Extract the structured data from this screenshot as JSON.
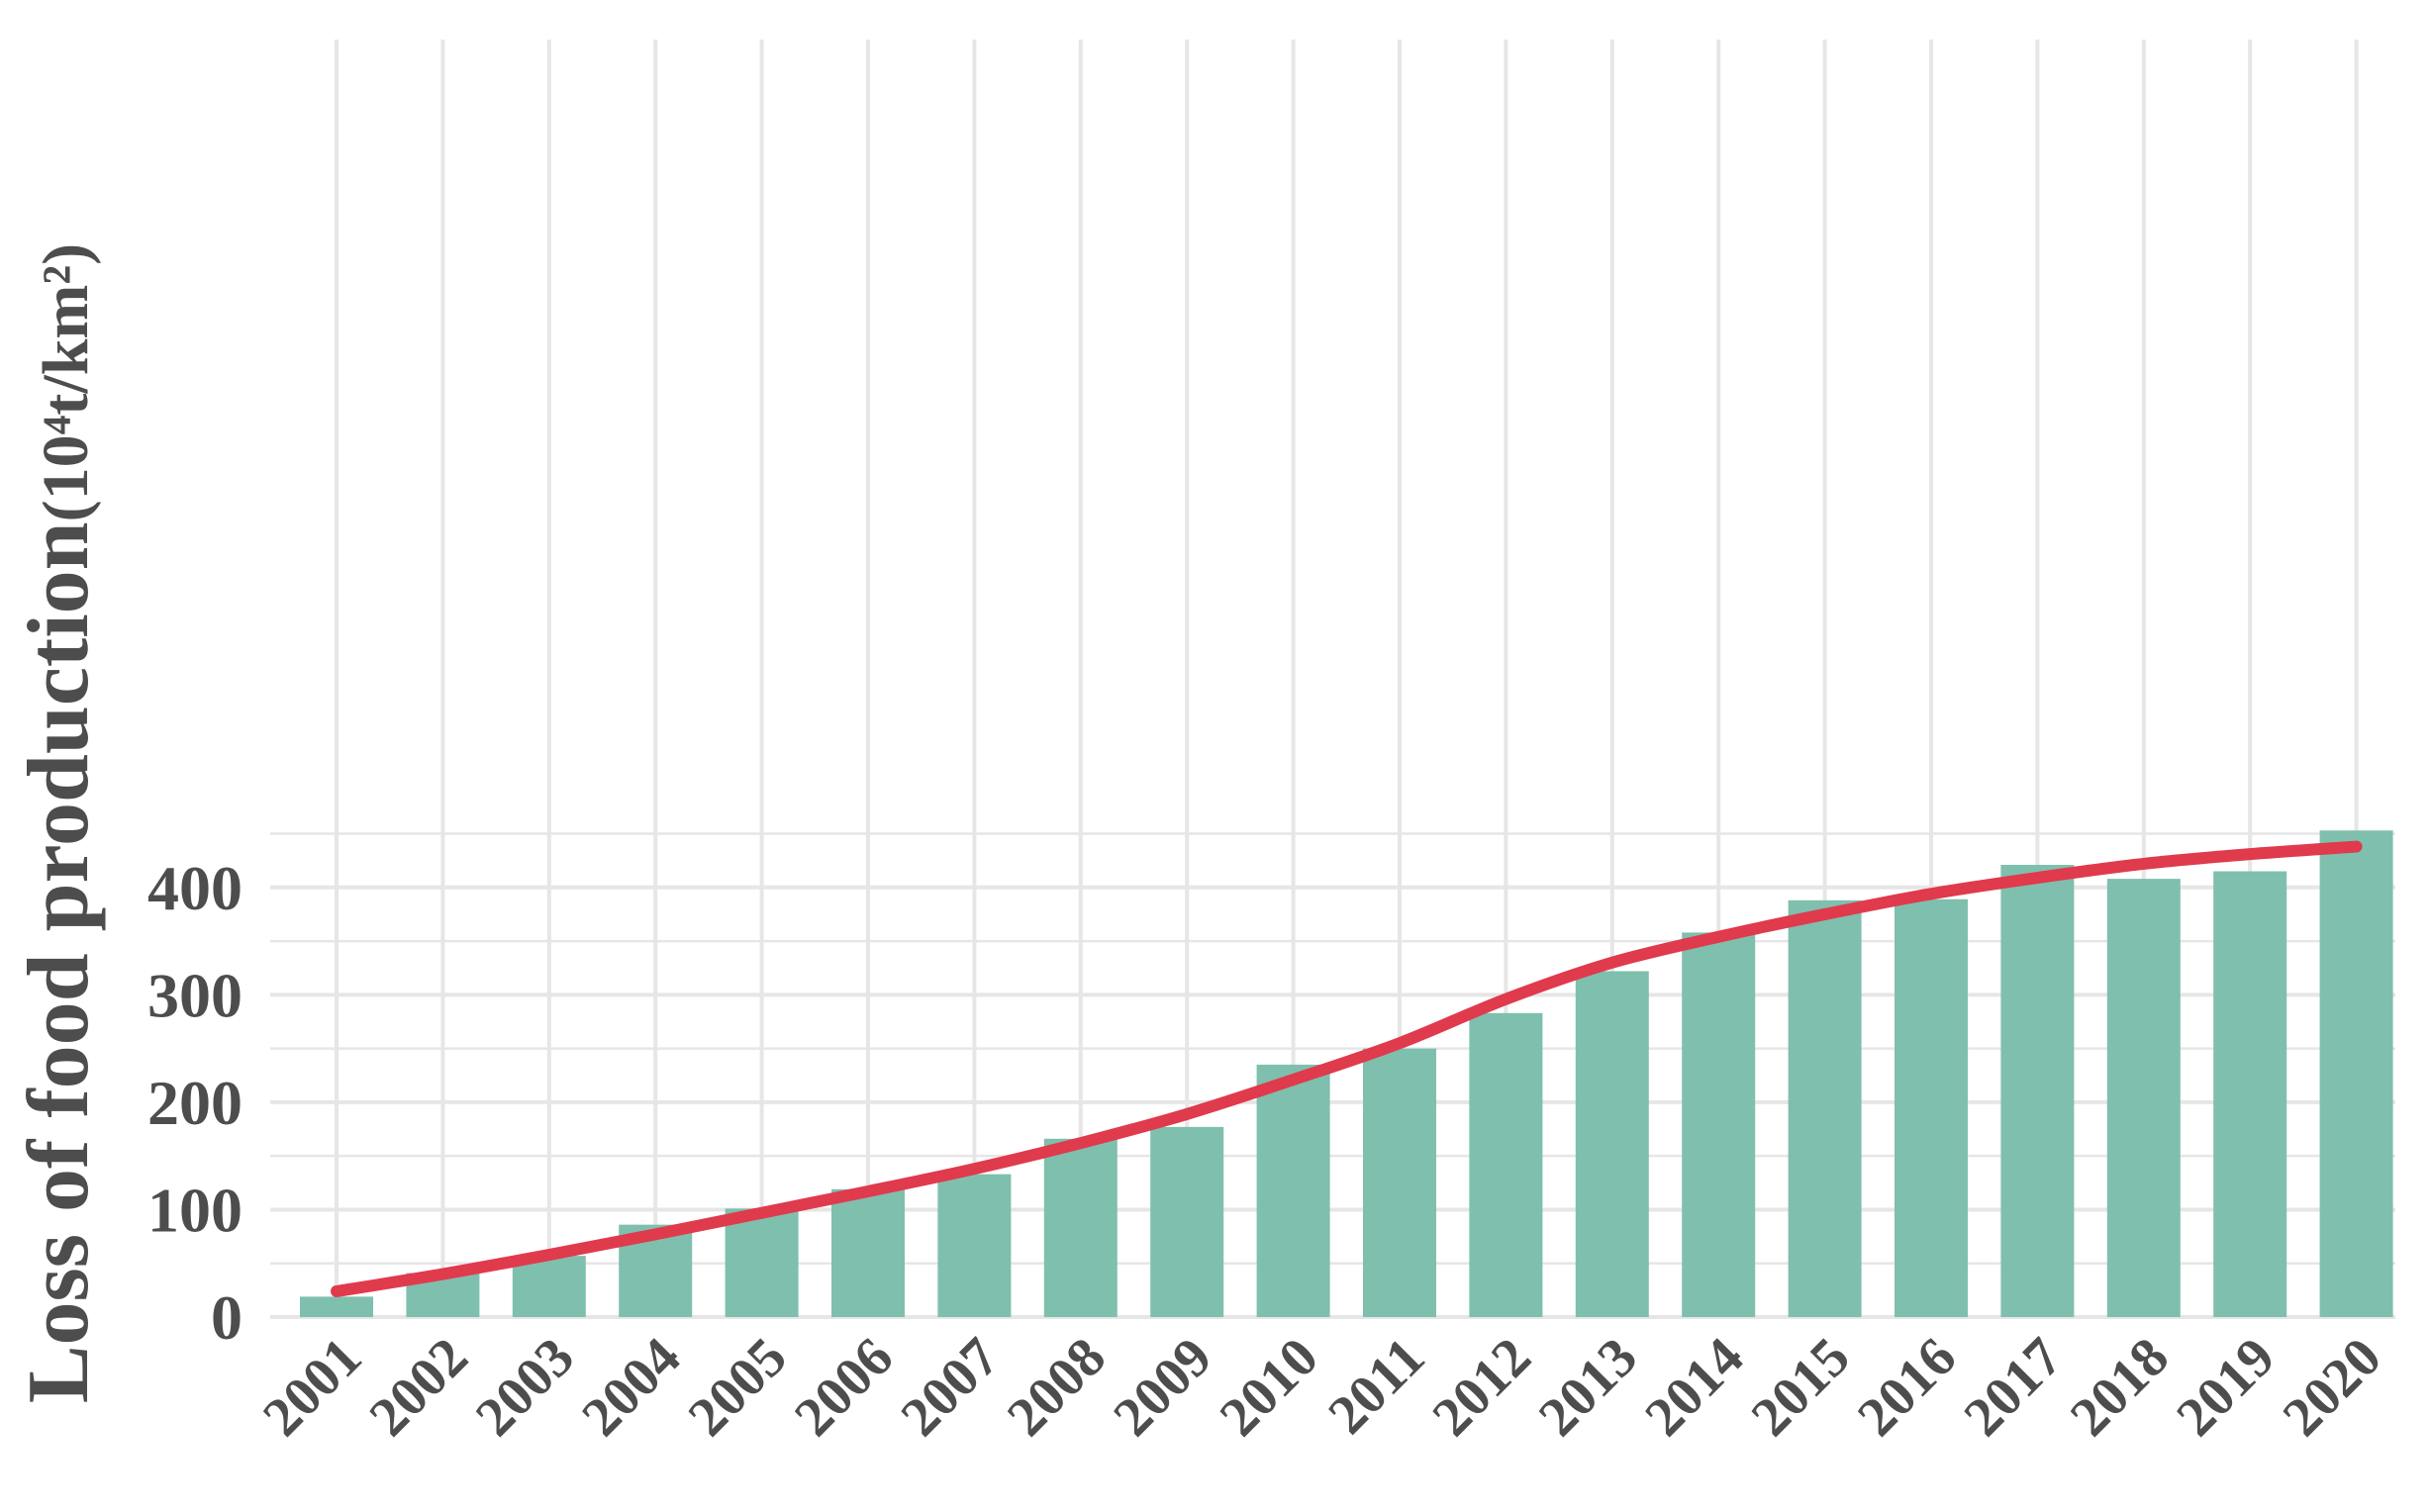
{
  "chart_data": {
    "type": "bar",
    "categories": [
      "2001",
      "2002",
      "2003",
      "2004",
      "2005",
      "2006",
      "2007",
      "2008",
      "2009",
      "2010",
      "2011",
      "2012",
      "2013",
      "2014",
      "2015",
      "2016",
      "2017",
      "2018",
      "2019",
      "2020"
    ],
    "values": [
      19,
      41,
      57,
      86,
      101,
      119,
      133,
      166,
      177,
      235,
      250,
      283,
      322,
      358,
      388,
      389,
      421,
      408,
      415,
      453
    ],
    "trend": {
      "type": "line",
      "values": [
        24,
        40,
        58,
        77,
        97,
        117,
        138,
        162,
        189,
        221,
        255,
        296,
        330,
        354,
        375,
        394,
        409,
        422,
        431,
        438
      ]
    },
    "xlabel": "",
    "ylabel": "Loss of food production",
    "ylabel_unit": "(10⁴t/km²)",
    "yticks": [
      0,
      100,
      200,
      300,
      400
    ],
    "ylim": [
      0,
      450
    ],
    "grid": true,
    "colors": {
      "bars": "#7fbfae",
      "trend": "#e03a4d",
      "grid": "#e6e6e6",
      "text": "#4d4d4d"
    }
  }
}
